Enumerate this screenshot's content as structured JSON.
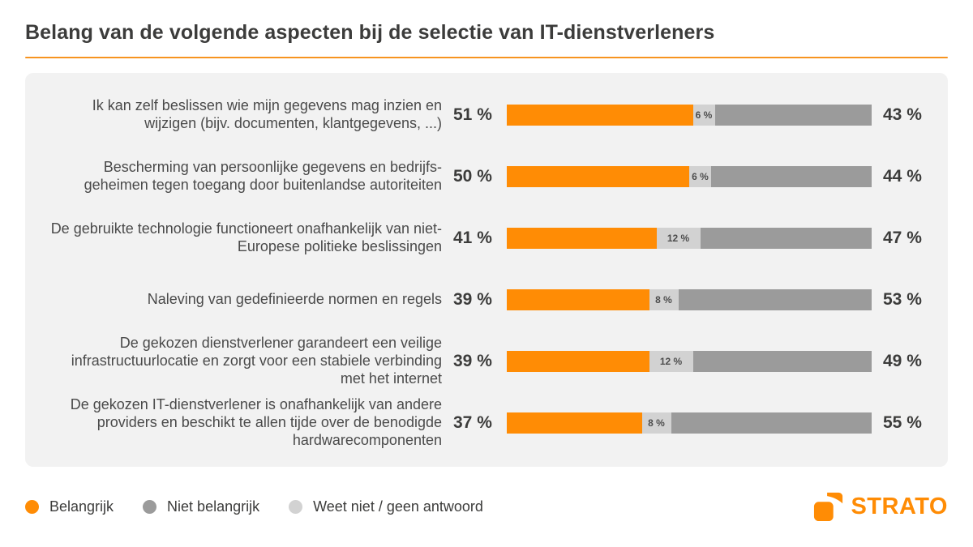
{
  "title": "Belang van de volgende aspecten bij de selectie van IT-dienstverleners",
  "theme": {
    "accent": "#FF8C05",
    "accent_line": "#F79420",
    "panel_bg": "#F2F2F2",
    "text_dark": "#3C3C3B",
    "text_label": "#4A4A4A"
  },
  "chart_data": {
    "type": "bar",
    "variant": "horizontal-stacked",
    "unit": "%",
    "xlim": [
      0,
      100
    ],
    "grid": false,
    "legend_position": "bottom-left",
    "categories": [
      "Ik kan zelf beslissen wie mijn gegevens mag inzien en wijzigen (bijv. documenten, klantgegevens, ...)",
      "Bescherming van persoonlijke gegevens en bedrijfs-geheimen tegen toegang door buitenlandse autoriteiten",
      "De gebruikte technologie functioneert onafhankelijk van niet-Europese politieke beslissingen",
      "Naleving van gedefinieerde normen en regels",
      "De gekozen dienstverlener garandeert een veilige infrastructuurlocatie en zorgt voor een stabiele verbinding met het internet",
      "De gekozen IT-dienstverlener is onafhankelijk van andere providers en beschikt te allen tijde over de benodigde hardwarecomponenten"
    ],
    "series": [
      {
        "name": "Belangrijk",
        "color": "#FF8C05",
        "values": [
          51,
          50,
          41,
          39,
          39,
          37
        ]
      },
      {
        "name": "Weet niet / geen antwoord",
        "color": "#D2D2D2",
        "values": [
          6,
          6,
          12,
          8,
          12,
          8
        ]
      },
      {
        "name": "Niet belangrijk",
        "color": "#9B9B9B",
        "values": [
          43,
          44,
          47,
          53,
          49,
          55
        ]
      }
    ],
    "value_labels": {
      "left_of_bar": "Belangrijk",
      "inside_bar": "Weet niet / geen antwoord",
      "right_of_bar": "Niet belangrijk"
    }
  },
  "legend": [
    {
      "label": "Belangrijk",
      "color": "#FF8C05"
    },
    {
      "label": "Niet belangrijk",
      "color": "#9B9B9B"
    },
    {
      "label": "Weet niet / geen antwoord",
      "color": "#D2D2D2"
    }
  ],
  "brand": {
    "logo_text": "STRATO",
    "color": "#FF8C05"
  }
}
